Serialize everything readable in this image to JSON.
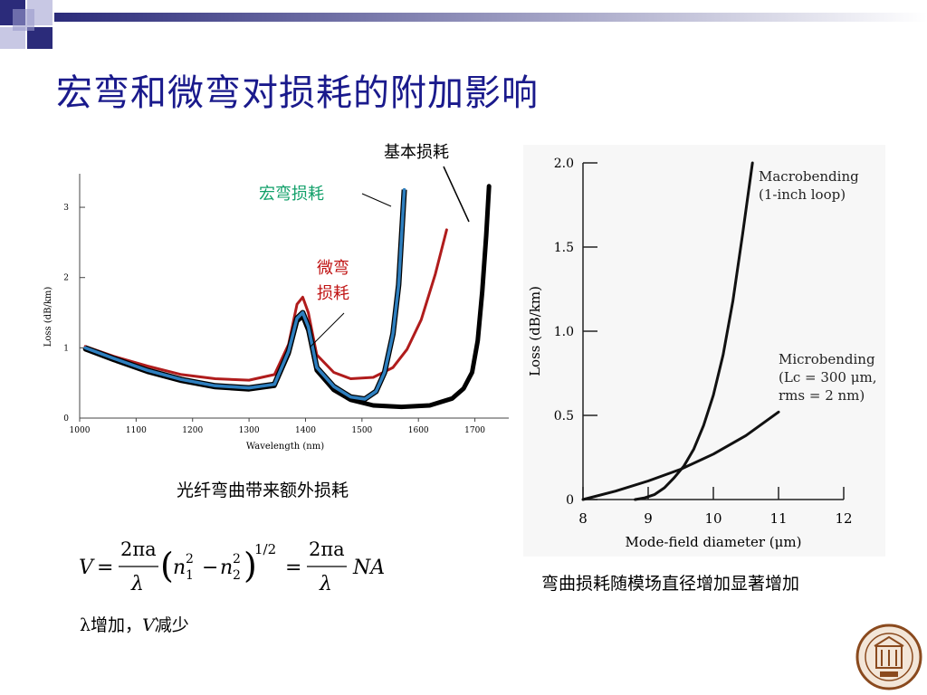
{
  "slide": {
    "title": "宏弯和微弯对损耗的附加影响",
    "left_caption": "光纤弯曲带来额外损耗",
    "right_caption": "弯曲损耗随模场直径增加显著增加",
    "bottom_note_lambda": "λ",
    "bottom_note_mid": "增加，",
    "bottom_note_v": "V",
    "bottom_note_end": "减少"
  },
  "formula": {
    "V": "V",
    "eq1": "=",
    "num1": "2πa",
    "den1": "λ",
    "n1": "n",
    "n1_sup": "2",
    "n1_sub": "1",
    "minus": "−",
    "n2": "n",
    "n2_sup": "2",
    "n2_sub": "2",
    "power": "1/2",
    "eq2": "=",
    "num2": "2πa",
    "den2": "λ",
    "NA": "NA"
  },
  "colors": {
    "title": "#1a1a8c",
    "deco_dark": "#2b2b7a",
    "deco_light": "#b8b8dc",
    "macro": "#2e7fbf",
    "micro": "#b01c1c",
    "basic": "#000000",
    "macro_label": "#12a06a",
    "micro_label": "#c01414"
  },
  "chart_data": [
    {
      "type": "line",
      "xlabel": "Wavelength (nm)",
      "ylabel": "Loss (dB/km)",
      "xlim": [
        1000,
        1760
      ],
      "ylim": [
        0,
        3.4
      ],
      "xticks": [
        1000,
        1100,
        1200,
        1300,
        1400,
        1500,
        1600,
        1700
      ],
      "yticks": [
        0,
        1,
        2,
        3
      ],
      "annotations": [
        "基本损耗",
        "宏弯损耗",
        "微弯",
        "损耗"
      ],
      "series": [
        {
          "key": "micro",
          "x": [
            1010,
            1060,
            1120,
            1180,
            1240,
            1300,
            1345,
            1370,
            1385,
            1395,
            1405,
            1420,
            1450,
            1480,
            1520,
            1555,
            1580,
            1605,
            1630,
            1650
          ],
          "y": [
            1.02,
            0.88,
            0.74,
            0.62,
            0.56,
            0.54,
            0.62,
            1.05,
            1.62,
            1.72,
            1.5,
            0.9,
            0.65,
            0.56,
            0.58,
            0.72,
            0.98,
            1.4,
            2.05,
            2.68
          ]
        },
        {
          "key": "macro",
          "x": [
            1010,
            1060,
            1120,
            1180,
            1240,
            1300,
            1345,
            1370,
            1385,
            1395,
            1405,
            1420,
            1450,
            1480,
            1505,
            1525,
            1540,
            1555,
            1565,
            1575
          ],
          "y": [
            1.0,
            0.85,
            0.68,
            0.55,
            0.46,
            0.43,
            0.48,
            0.95,
            1.42,
            1.5,
            1.3,
            0.72,
            0.45,
            0.3,
            0.27,
            0.38,
            0.65,
            1.2,
            1.9,
            3.25
          ]
        },
        {
          "key": "basic",
          "x": [
            1010,
            1060,
            1120,
            1180,
            1240,
            1300,
            1345,
            1370,
            1385,
            1395,
            1405,
            1420,
            1450,
            1480,
            1520,
            1570,
            1620,
            1660,
            1680,
            1695,
            1705,
            1713,
            1720,
            1725
          ],
          "y": [
            0.98,
            0.83,
            0.66,
            0.53,
            0.44,
            0.41,
            0.46,
            0.92,
            1.38,
            1.45,
            1.25,
            0.68,
            0.4,
            0.26,
            0.18,
            0.16,
            0.18,
            0.28,
            0.42,
            0.65,
            1.1,
            1.8,
            2.6,
            3.3
          ]
        }
      ]
    },
    {
      "type": "line",
      "xlabel": "Mode-field diameter (μm)",
      "ylabel": "Loss (dB/km)",
      "xlim": [
        8,
        12
      ],
      "ylim": [
        0,
        2.0
      ],
      "xticks": [
        8,
        9,
        10,
        11,
        12
      ],
      "yticks": [
        0,
        0.5,
        1.0,
        1.5,
        2.0
      ],
      "ytick_labels": [
        "0",
        "0.5",
        "1.0",
        "1.5",
        "2.0"
      ],
      "series": [
        {
          "name": "Macrobending",
          "name_line2": "(1-inch loop)",
          "key": "macrobending",
          "x": [
            8.8,
            8.95,
            9.1,
            9.25,
            9.4,
            9.55,
            9.7,
            9.85,
            10.0,
            10.15,
            10.3,
            10.45,
            10.6
          ],
          "y": [
            0,
            0.01,
            0.03,
            0.07,
            0.13,
            0.2,
            0.3,
            0.44,
            0.62,
            0.86,
            1.18,
            1.58,
            2.0
          ]
        },
        {
          "name": "Microbending",
          "name_line2": "(Lc = 300 μm,",
          "name_line3": "rms = 2 nm)",
          "key": "microbending",
          "x": [
            8.0,
            8.5,
            9.0,
            9.5,
            10.0,
            10.5,
            11.0
          ],
          "y": [
            0.0,
            0.05,
            0.11,
            0.18,
            0.27,
            0.38,
            0.52
          ]
        }
      ]
    }
  ]
}
